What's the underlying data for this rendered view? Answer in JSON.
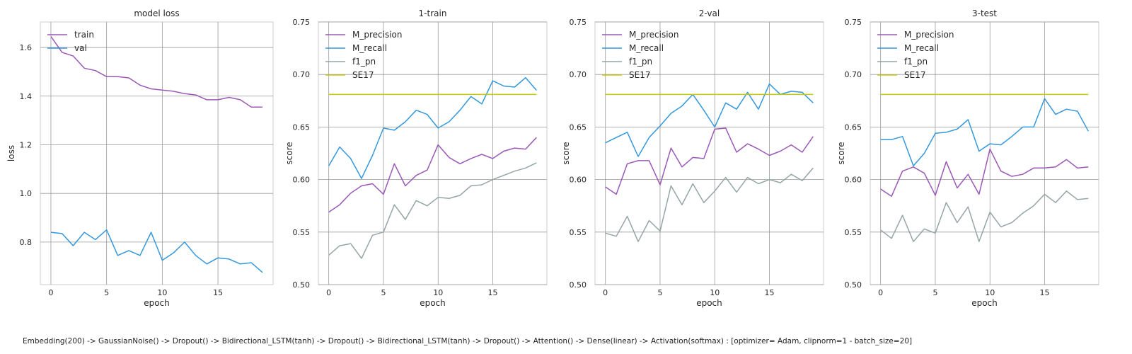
{
  "caption": "Embedding(200) -> GaussianNoise() -> Dropout() -> Bidirectional_LSTM(tanh) -> Dropout() -> Bidirectional_LSTM(tanh) -> Dropout() -> Attention() -> Dense(linear) -> Activation(softmax) : [optimizer= Adam, clipnorm=1 - batch_size=20]",
  "colors": {
    "train": "#9b59b6",
    "val": "#3498db",
    "f1_pn": "#95a5a6",
    "SE17": "#c8c800",
    "grid": "#9a9a9a",
    "frame": "#cccccc"
  },
  "chart_data": [
    {
      "type": "line",
      "title": "model loss",
      "xlabel": "epoch",
      "ylabel": "loss",
      "xlim": [
        -0.95,
        19.95
      ],
      "ylim": [
        0.625,
        1.705
      ],
      "xticks": [
        0,
        5,
        10,
        15
      ],
      "xtick_labels": [
        "0",
        "5",
        "10",
        "15"
      ],
      "yticks": [
        0.8,
        1.0,
        1.2,
        1.4,
        1.6
      ],
      "ytick_labels": [
        "0.8",
        "1.0",
        "1.2",
        "1.4",
        "1.6"
      ],
      "grid": true,
      "legend": "upper left",
      "x": [
        0,
        1,
        2,
        3,
        4,
        5,
        6,
        7,
        8,
        9,
        10,
        11,
        12,
        13,
        14,
        15,
        16,
        17,
        18,
        19
      ],
      "series": [
        {
          "name": "train",
          "color": "#9b59b6",
          "values": [
            1.645,
            1.58,
            1.565,
            1.515,
            1.505,
            1.48,
            1.48,
            1.475,
            1.445,
            1.43,
            1.425,
            1.42,
            1.41,
            1.405,
            1.385,
            1.385,
            1.395,
            1.385,
            1.355,
            1.355
          ]
        },
        {
          "name": "val",
          "color": "#3498db",
          "values": [
            0.84,
            0.835,
            0.785,
            0.84,
            0.81,
            0.85,
            0.745,
            0.765,
            0.745,
            0.84,
            0.725,
            0.755,
            0.8,
            0.745,
            0.71,
            0.735,
            0.73,
            0.71,
            0.715,
            0.675
          ]
        }
      ]
    },
    {
      "type": "line",
      "title": "1-train",
      "xlabel": "epoch",
      "ylabel": "score",
      "xlim": [
        -0.95,
        19.95
      ],
      "ylim": [
        0.5,
        0.75
      ],
      "xticks": [
        0,
        5,
        10,
        15
      ],
      "xtick_labels": [
        "0",
        "5",
        "10",
        "15"
      ],
      "yticks": [
        0.5,
        0.55,
        0.6,
        0.65,
        0.7,
        0.75
      ],
      "ytick_labels": [
        "0.50",
        "0.55",
        "0.60",
        "0.65",
        "0.70",
        "0.75"
      ],
      "grid": true,
      "legend": "upper left",
      "x": [
        0,
        1,
        2,
        3,
        4,
        5,
        6,
        7,
        8,
        9,
        10,
        11,
        12,
        13,
        14,
        15,
        16,
        17,
        18,
        19
      ],
      "series": [
        {
          "name": "M_precision",
          "color": "#9b59b6",
          "values": [
            0.569,
            0.576,
            0.587,
            0.594,
            0.596,
            0.586,
            0.615,
            0.594,
            0.604,
            0.609,
            0.633,
            0.621,
            0.615,
            0.62,
            0.624,
            0.62,
            0.627,
            0.63,
            0.629,
            0.64
          ]
        },
        {
          "name": "M_recall",
          "color": "#3498db",
          "values": [
            0.613,
            0.631,
            0.62,
            0.601,
            0.623,
            0.649,
            0.647,
            0.655,
            0.666,
            0.662,
            0.649,
            0.655,
            0.666,
            0.679,
            0.672,
            0.694,
            0.689,
            0.688,
            0.697,
            0.685
          ]
        },
        {
          "name": "f1_pn",
          "color": "#95a5a6",
          "values": [
            0.528,
            0.537,
            0.539,
            0.525,
            0.547,
            0.55,
            0.576,
            0.562,
            0.58,
            0.575,
            0.583,
            0.582,
            0.585,
            0.594,
            0.595,
            0.6,
            0.604,
            0.608,
            0.611,
            0.616
          ]
        },
        {
          "name": "SE17",
          "color": "#c8c800",
          "values": [
            0.681,
            0.681,
            0.681,
            0.681,
            0.681,
            0.681,
            0.681,
            0.681,
            0.681,
            0.681,
            0.681,
            0.681,
            0.681,
            0.681,
            0.681,
            0.681,
            0.681,
            0.681,
            0.681,
            0.681
          ]
        }
      ]
    },
    {
      "type": "line",
      "title": "2-val",
      "xlabel": "epoch",
      "ylabel": "score",
      "xlim": [
        -0.95,
        19.95
      ],
      "ylim": [
        0.5,
        0.75
      ],
      "xticks": [
        0,
        5,
        10,
        15
      ],
      "xtick_labels": [
        "0",
        "5",
        "10",
        "15"
      ],
      "yticks": [
        0.5,
        0.55,
        0.6,
        0.65,
        0.7,
        0.75
      ],
      "ytick_labels": [
        "0.50",
        "0.55",
        "0.60",
        "0.65",
        "0.70",
        "0.75"
      ],
      "grid": true,
      "legend": "upper left",
      "x": [
        0,
        1,
        2,
        3,
        4,
        5,
        6,
        7,
        8,
        9,
        10,
        11,
        12,
        13,
        14,
        15,
        16,
        17,
        18,
        19
      ],
      "series": [
        {
          "name": "M_precision",
          "color": "#9b59b6",
          "values": [
            0.593,
            0.586,
            0.615,
            0.618,
            0.618,
            0.595,
            0.63,
            0.612,
            0.621,
            0.62,
            0.648,
            0.649,
            0.626,
            0.634,
            0.629,
            0.623,
            0.627,
            0.633,
            0.626,
            0.641
          ]
        },
        {
          "name": "M_recall",
          "color": "#3498db",
          "values": [
            0.635,
            0.64,
            0.645,
            0.622,
            0.64,
            0.651,
            0.663,
            0.67,
            0.681,
            0.666,
            0.65,
            0.673,
            0.667,
            0.683,
            0.667,
            0.691,
            0.681,
            0.684,
            0.683,
            0.673
          ]
        },
        {
          "name": "f1_pn",
          "color": "#95a5a6",
          "values": [
            0.549,
            0.546,
            0.565,
            0.541,
            0.561,
            0.551,
            0.594,
            0.576,
            0.596,
            0.578,
            0.589,
            0.602,
            0.588,
            0.602,
            0.596,
            0.6,
            0.597,
            0.605,
            0.599,
            0.611
          ]
        },
        {
          "name": "SE17",
          "color": "#c8c800",
          "values": [
            0.681,
            0.681,
            0.681,
            0.681,
            0.681,
            0.681,
            0.681,
            0.681,
            0.681,
            0.681,
            0.681,
            0.681,
            0.681,
            0.681,
            0.681,
            0.681,
            0.681,
            0.681,
            0.681,
            0.681
          ]
        }
      ]
    },
    {
      "type": "line",
      "title": "3-test",
      "xlabel": "epoch",
      "ylabel": "score",
      "xlim": [
        -0.95,
        19.95
      ],
      "ylim": [
        0.5,
        0.75
      ],
      "xticks": [
        0,
        5,
        10,
        15
      ],
      "xtick_labels": [
        "0",
        "5",
        "10",
        "15"
      ],
      "yticks": [
        0.5,
        0.55,
        0.6,
        0.65,
        0.7,
        0.75
      ],
      "ytick_labels": [
        "0.50",
        "0.55",
        "0.60",
        "0.65",
        "0.70",
        "0.75"
      ],
      "grid": true,
      "legend": "upper left",
      "x": [
        0,
        1,
        2,
        3,
        4,
        5,
        6,
        7,
        8,
        9,
        10,
        11,
        12,
        13,
        14,
        15,
        16,
        17,
        18,
        19
      ],
      "series": [
        {
          "name": "M_precision",
          "color": "#9b59b6",
          "values": [
            0.591,
            0.584,
            0.608,
            0.612,
            0.606,
            0.585,
            0.617,
            0.592,
            0.605,
            0.586,
            0.629,
            0.608,
            0.603,
            0.605,
            0.611,
            0.611,
            0.612,
            0.619,
            0.611,
            0.612
          ]
        },
        {
          "name": "M_recall",
          "color": "#3498db",
          "values": [
            0.638,
            0.638,
            0.641,
            0.613,
            0.625,
            0.644,
            0.645,
            0.648,
            0.657,
            0.627,
            0.634,
            0.633,
            0.641,
            0.65,
            0.65,
            0.677,
            0.662,
            0.667,
            0.665,
            0.646
          ]
        },
        {
          "name": "f1_pn",
          "color": "#95a5a6",
          "values": [
            0.552,
            0.544,
            0.566,
            0.541,
            0.553,
            0.549,
            0.578,
            0.559,
            0.574,
            0.541,
            0.569,
            0.555,
            0.559,
            0.568,
            0.575,
            0.586,
            0.578,
            0.589,
            0.581,
            0.582
          ]
        },
        {
          "name": "SE17",
          "color": "#c8c800",
          "values": [
            0.681,
            0.681,
            0.681,
            0.681,
            0.681,
            0.681,
            0.681,
            0.681,
            0.681,
            0.681,
            0.681,
            0.681,
            0.681,
            0.681,
            0.681,
            0.681,
            0.681,
            0.681,
            0.681,
            0.681
          ]
        }
      ]
    }
  ]
}
